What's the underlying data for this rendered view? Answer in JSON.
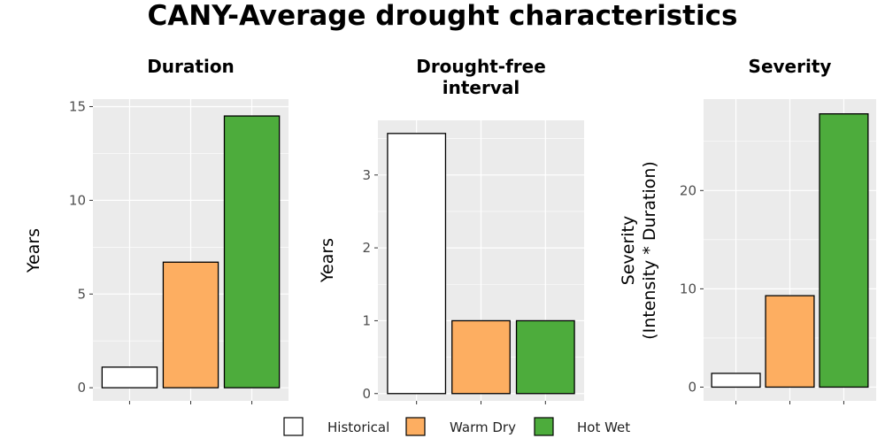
{
  "title": "CANY-Average drought characteristics",
  "chart_data": [
    {
      "type": "bar",
      "title": "Duration",
      "ylabel": "Years",
      "categories": [
        "Historical",
        "Warm Dry",
        "Hot Wet"
      ],
      "values": [
        1.1,
        6.7,
        14.5
      ],
      "ylim": [
        -0.7,
        15.4
      ],
      "yticks": [
        0,
        5,
        10,
        15
      ],
      "grid": true
    },
    {
      "type": "bar",
      "title": "Drought-free interval",
      "ylabel": "Years",
      "categories": [
        "Historical",
        "Warm Dry",
        "Hot Wet"
      ],
      "values": [
        3.57,
        1.0,
        1.0
      ],
      "ylim": [
        -0.1,
        3.75
      ],
      "yticks": [
        0,
        1,
        2,
        3
      ],
      "grid": true
    },
    {
      "type": "bar",
      "title": "Severity",
      "ylabel": "Severity\n(Intensity * Duration)",
      "categories": [
        "Historical",
        "Warm Dry",
        "Hot Wet"
      ],
      "values": [
        1.4,
        9.3,
        27.8
      ],
      "ylim": [
        -1.4,
        29.3
      ],
      "yticks": [
        0,
        10,
        20
      ],
      "grid": true
    }
  ],
  "legend": {
    "position": "bottom",
    "items": [
      {
        "label": "Historical",
        "color": "#ffffff"
      },
      {
        "label": "Warm Dry",
        "color": "#FDAE61"
      },
      {
        "label": "Hot Wet",
        "color": "#4DAC3C"
      }
    ]
  },
  "colors": {
    "panel_bg": "#EBEBEB",
    "grid": "#ffffff",
    "bar_stroke": "#000000",
    "tick_text": "#4D4D4D"
  }
}
